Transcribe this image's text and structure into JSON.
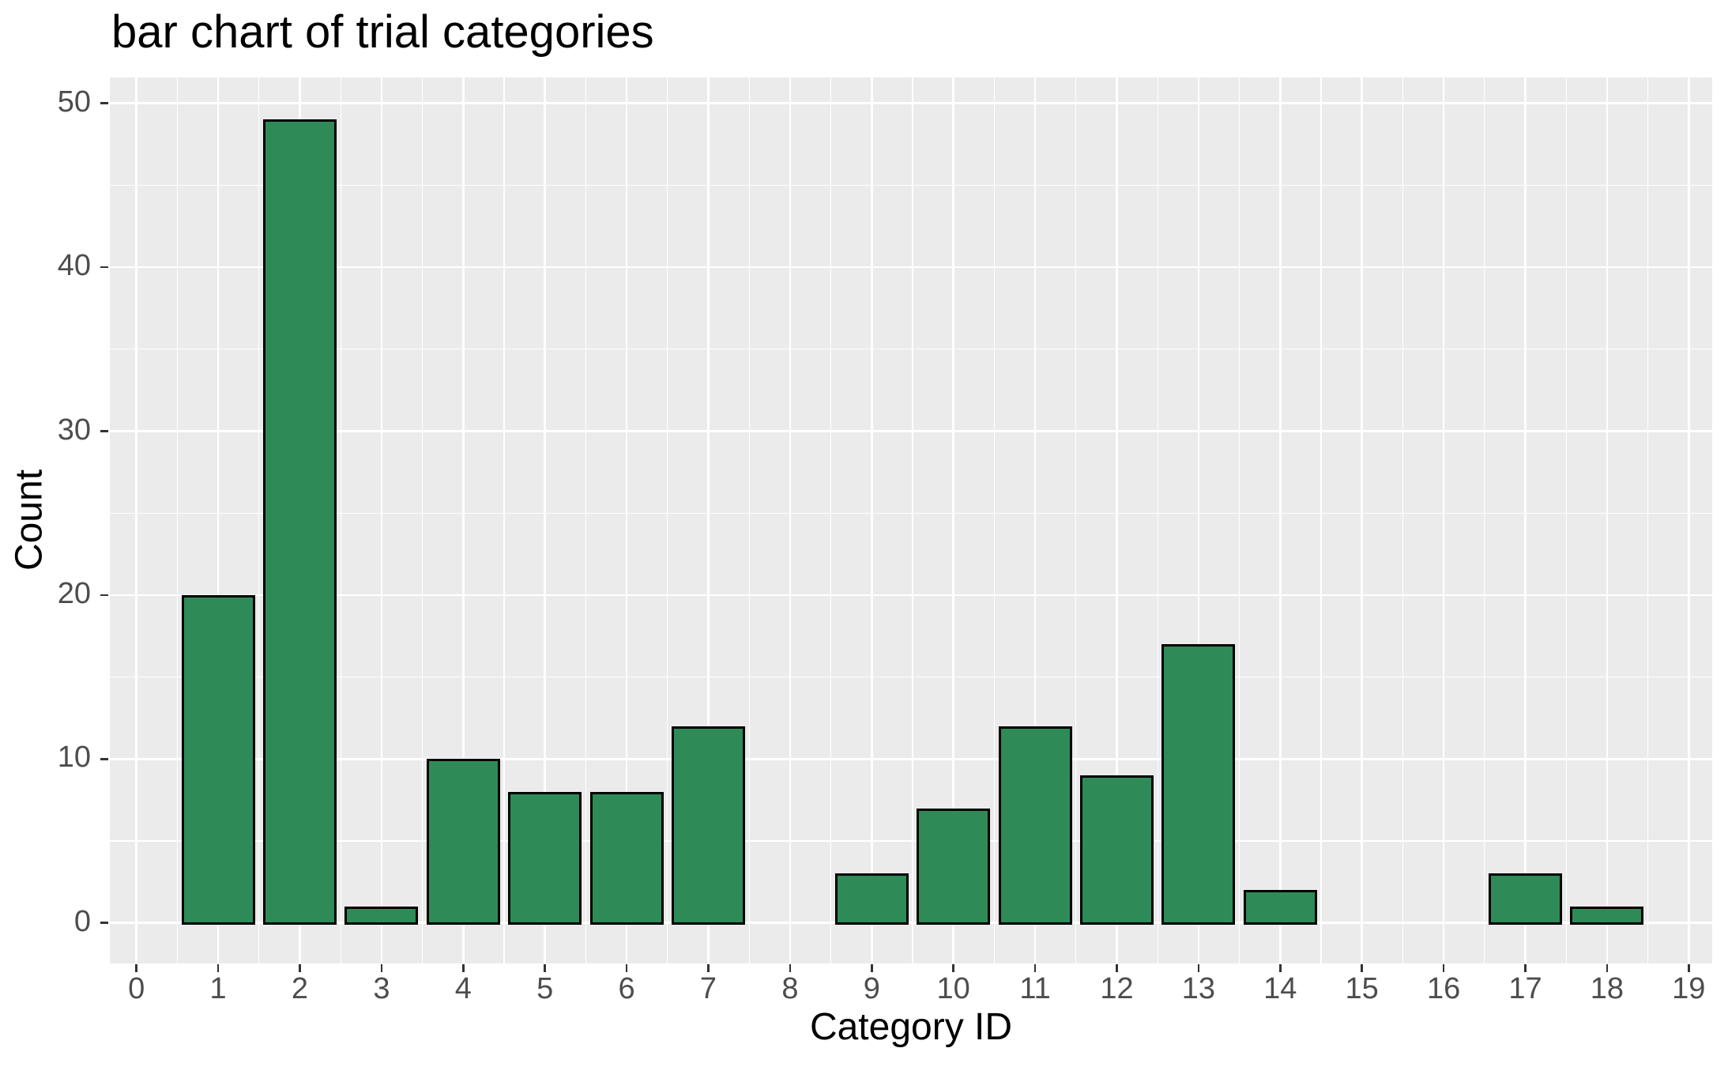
{
  "chart_data": {
    "type": "bar",
    "title": "bar chart of trial categories",
    "xlabel": "Category ID",
    "ylabel": "Count",
    "categories": [
      0,
      1,
      2,
      3,
      4,
      5,
      6,
      7,
      8,
      9,
      10,
      11,
      12,
      13,
      14,
      15,
      16,
      17,
      18,
      19
    ],
    "values": [
      0,
      20,
      49,
      1,
      10,
      8,
      8,
      12,
      0,
      3,
      7,
      12,
      9,
      17,
      2,
      0,
      0,
      3,
      1,
      0
    ],
    "x_ticks": [
      0,
      1,
      2,
      3,
      4,
      5,
      6,
      7,
      8,
      9,
      10,
      11,
      12,
      13,
      14,
      15,
      16,
      17,
      18,
      19
    ],
    "y_ticks": [
      0,
      10,
      20,
      30,
      40,
      50
    ],
    "y_minor_gridlines": [
      5,
      15,
      25,
      35,
      45
    ],
    "ylim": [
      0,
      50
    ],
    "bar_width_fraction": 0.9,
    "grid": "major-and-minor",
    "legend": "none",
    "style": {
      "panel_background": "#EBEBEB",
      "gridline_color": "#FFFFFF",
      "bar_fill": "#2E8B57",
      "bar_edge": "#000000",
      "tick_mark_color": "#333333",
      "tick_label_color": "#4D4D4D",
      "title_color": "#000000",
      "axis_title_color": "#000000"
    }
  }
}
